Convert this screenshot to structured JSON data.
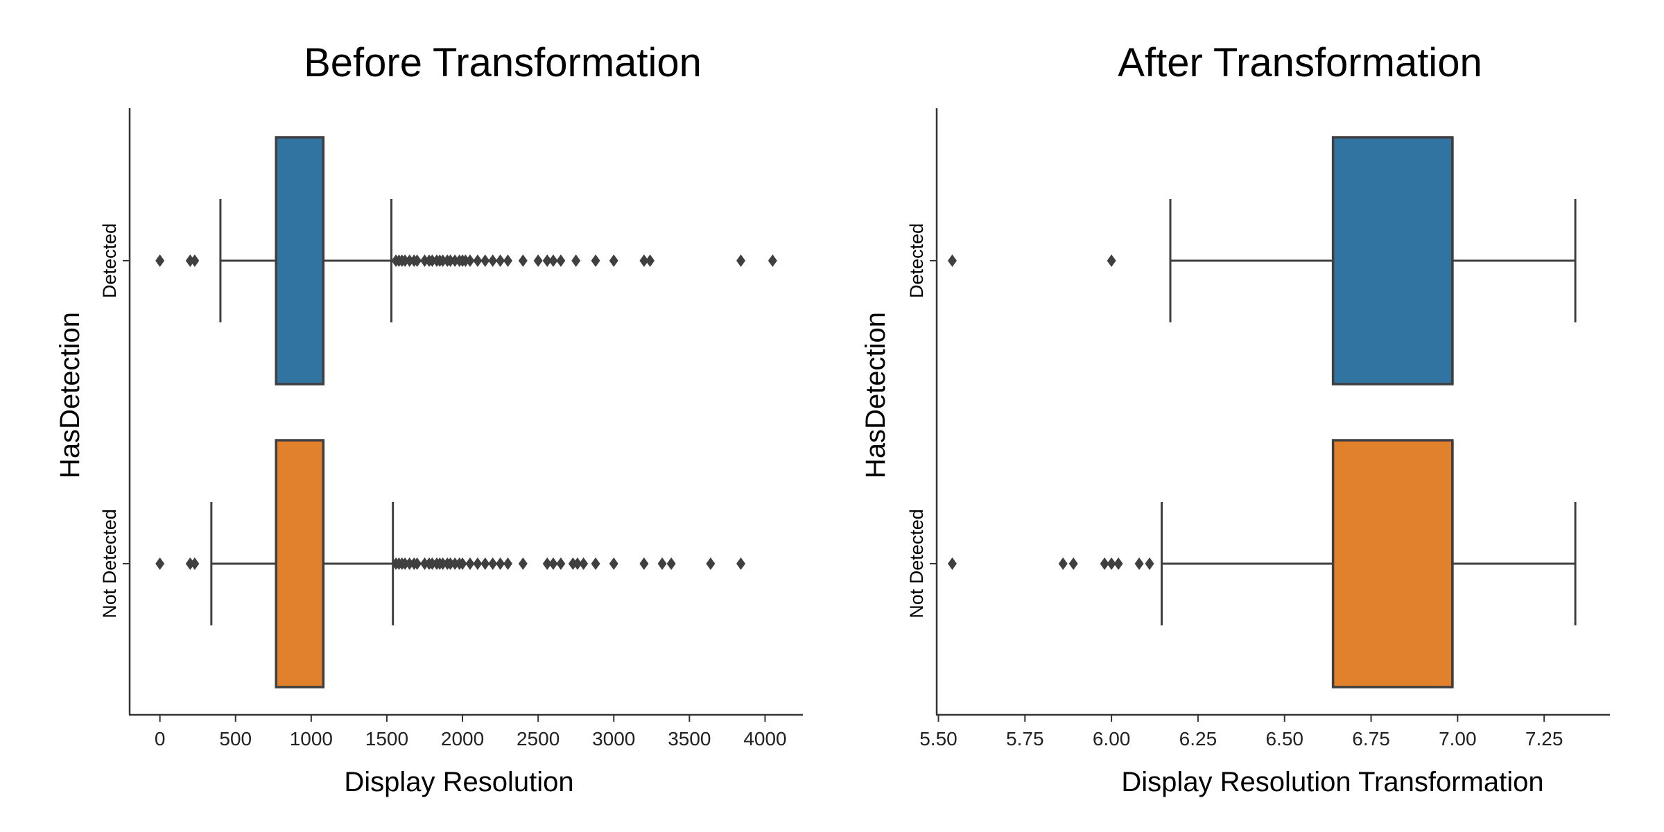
{
  "chart_data": [
    {
      "type": "box",
      "title": "Before Transformation",
      "xlabel": "Display Resolution",
      "ylabel": "HasDetection",
      "orientation": "horizontal",
      "xlim": [
        -200,
        4250
      ],
      "xticks": [
        0,
        500,
        1000,
        1500,
        2000,
        2500,
        3000,
        3500,
        4000
      ],
      "categories": [
        "Detected",
        "Not Detected"
      ],
      "series": [
        {
          "category": "Detected",
          "color": "#3274a1",
          "whisker_low": 400,
          "q1": 768,
          "median": 1080,
          "q3": 1080,
          "whisker_high": 1530,
          "outliers": [
            0,
            200,
            230,
            1560,
            1580,
            1600,
            1620,
            1650,
            1680,
            1700,
            1750,
            1780,
            1800,
            1830,
            1850,
            1870,
            1900,
            1920,
            1950,
            1980,
            2000,
            2020,
            2050,
            2100,
            2150,
            2200,
            2250,
            2300,
            2400,
            2500,
            2560,
            2600,
            2650,
            2750,
            2880,
            3000,
            3200,
            3240,
            3840,
            4050
          ]
        },
        {
          "category": "Not Detected",
          "color": "#e1812c",
          "whisker_low": 340,
          "q1": 768,
          "median": 1080,
          "q3": 1080,
          "whisker_high": 1540,
          "outliers": [
            0,
            200,
            230,
            1560,
            1580,
            1600,
            1620,
            1650,
            1680,
            1700,
            1750,
            1780,
            1800,
            1830,
            1850,
            1870,
            1900,
            1920,
            1950,
            1980,
            2000,
            2050,
            2100,
            2150,
            2200,
            2250,
            2300,
            2400,
            2560,
            2600,
            2650,
            2730,
            2760,
            2800,
            2880,
            3000,
            3200,
            3320,
            3380,
            3640,
            3840
          ]
        }
      ]
    },
    {
      "type": "box",
      "title": "After Transformation",
      "xlabel": "Display Resolution Transformation",
      "ylabel": "HasDetection",
      "orientation": "horizontal",
      "xlim": [
        5.495,
        7.44
      ],
      "xticks": [
        5.5,
        5.75,
        6.0,
        6.25,
        6.5,
        6.75,
        7.0,
        7.25
      ],
      "xtick_labels": [
        "5.50",
        "5.75",
        "6.00",
        "6.25",
        "6.50",
        "6.75",
        "7.00",
        "7.25"
      ],
      "categories": [
        "Detected",
        "Not Detected"
      ],
      "series": [
        {
          "category": "Detected",
          "color": "#3274a1",
          "whisker_low": 6.17,
          "q1": 6.64,
          "median": 6.985,
          "q3": 6.985,
          "whisker_high": 7.34,
          "outliers": [
            5.54,
            6.0
          ]
        },
        {
          "category": "Not Detected",
          "color": "#e1812c",
          "whisker_low": 6.145,
          "q1": 6.64,
          "median": 6.985,
          "q3": 6.985,
          "whisker_high": 7.34,
          "outliers": [
            5.54,
            5.86,
            5.89,
            5.98,
            6.0,
            6.02,
            6.08,
            6.11
          ]
        }
      ]
    }
  ]
}
